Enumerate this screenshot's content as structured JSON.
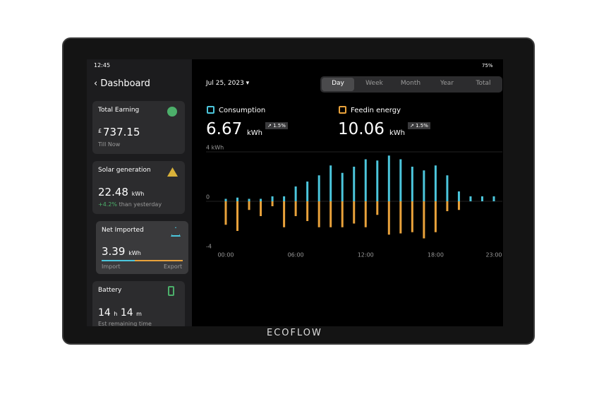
{
  "status": {
    "time": "12:45",
    "battery": "75%"
  },
  "sidebar": {
    "title": "Dashboard",
    "cards": [
      {
        "title": "Total Earning",
        "currency": "£",
        "value": "737.15",
        "note": "Till Now"
      },
      {
        "title": "Solar generation",
        "value": "22.48",
        "unit": "kWh",
        "change": "+4.2%",
        "note": "than yesterday"
      },
      {
        "title": "Net Imported",
        "value": "3.39",
        "unit": "kWh",
        "left": "Import",
        "right": "Export"
      },
      {
        "title": "Battery",
        "hours": "14",
        "hunit": "h",
        "minutes": "14",
        "munit": "m",
        "note": "Est remaining time"
      }
    ]
  },
  "header": {
    "date": "Jul 25, 2023",
    "tabs": [
      "Day",
      "Week",
      "Month",
      "Year",
      "Total"
    ]
  },
  "stats": [
    {
      "label": "Consumption",
      "value": "6.67",
      "unit": "kWh",
      "change": "↗ 1.5%"
    },
    {
      "label": "Feedin energy",
      "value": "10.06",
      "unit": "kWh",
      "change": "↗ 1.5%"
    }
  ],
  "chart": {
    "type": "bar",
    "categories": [
      "00:00",
      null,
      null,
      null,
      null,
      null,
      "06:00",
      null,
      null,
      null,
      null,
      null,
      "12:00",
      null,
      null,
      null,
      null,
      null,
      "18:00",
      null,
      null,
      null,
      null,
      "23:00"
    ],
    "series": [
      {
        "color": "#4cc6dc",
        "values": [
          0.2,
          0.3,
          0.2,
          0.2,
          0.4,
          0.4,
          1.2,
          1.6,
          2.1,
          2.9,
          2.3,
          2.8,
          3.4,
          3.3,
          3.7,
          3.4,
          2.8,
          2.5,
          2.9,
          2.1,
          0.8,
          0.4,
          0.4,
          0.4
        ]
      },
      {
        "color": "#e9a23b",
        "values": [
          -1.9,
          -2.4,
          -0.7,
          -1.2,
          -0.4,
          -2.1,
          -1.2,
          -1.6,
          -2.1,
          -2.1,
          -2.1,
          -1.8,
          -2.1,
          -1.1,
          -2.7,
          -2.6,
          -2.5,
          -3.0,
          -2.5,
          -0.8,
          -0.7,
          0,
          0,
          0
        ]
      }
    ],
    "ylim": [
      -4,
      4
    ],
    "yticks": [
      {
        "value": 4,
        "label": "4 kWh"
      },
      0,
      -4
    ],
    "grid": true
  },
  "brand": "ECOFLOW"
}
